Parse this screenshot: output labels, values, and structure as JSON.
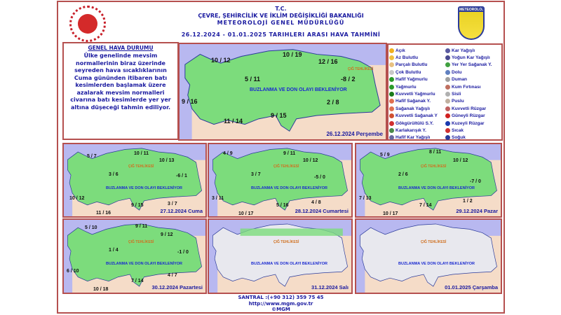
{
  "header": {
    "line1": "T.C.",
    "line2": "ÇEVRE, ŞEHİRCİLİK VE İKLİM DEĞİŞİKLİĞİ BAKANLIĞI",
    "line3": "METEOROLOJİ GENEL MÜDÜRLÜĞÜ",
    "subtitle": "26.12.2024 - 01.01.2025 TARIHLERI ARASI HAVA TAHMİNİ",
    "logo_right_text": "METEOROLOJİ"
  },
  "general": {
    "title": "GENEL HAVA DURUMU",
    "text": "Ülke genelinde mevsim normallerinin biraz üzerinde seyreden hava sıcaklıklarının Cuma gününden itibaren batı kesimlerden başlamak üzere azalarak mevsim normalleri civarına batı kesimlerde yer yer altına düşeceği tahmin ediliyor."
  },
  "legend": [
    {
      "label": "Açık",
      "icon": "sun",
      "color": "#f0b020"
    },
    {
      "label": "Az Bulutlu",
      "icon": "sun-cloud",
      "color": "#f0c040"
    },
    {
      "label": "Parçalı Bulutlu",
      "icon": "partly-cloudy",
      "color": "#e8c080"
    },
    {
      "label": "Çok Bulutlu",
      "icon": "cloudy",
      "color": "#c8c8c8"
    },
    {
      "label": "Hafif Yağmurlu",
      "icon": "light-rain",
      "color": "#2a9a2a"
    },
    {
      "label": "Yağmurlu",
      "icon": "rain",
      "color": "#2a9a2a"
    },
    {
      "label": "Kuvvetli Yağmurlu",
      "icon": "heavy-rain",
      "color": "#1a7a1a"
    },
    {
      "label": "Hafif Sağanak Y.",
      "icon": "light-shower",
      "color": "#e07050"
    },
    {
      "label": "Sağanak Yağışlı",
      "icon": "shower",
      "color": "#e07050"
    },
    {
      "label": "Kuvvetli Sağanak Y",
      "icon": "heavy-shower",
      "color": "#d05030"
    },
    {
      "label": "Gökgürültülü S.Y.",
      "icon": "thunderstorm",
      "color": "#d03030"
    },
    {
      "label": "Karlakarışık Y.",
      "icon": "sleet",
      "color": "#4a8a4a"
    },
    {
      "label": "Hafif Kar Yağışlı",
      "icon": "light-snow",
      "color": "#6a6aa0"
    },
    {
      "label": "Kar Yağışlı",
      "icon": "snow",
      "color": "#5a5aa0"
    },
    {
      "label": "Yoğun Kar Yağışlı",
      "icon": "heavy-snow",
      "color": "#4a4a90"
    },
    {
      "label": "Yer Yer Sağanak Y.",
      "icon": "scattered-shower",
      "color": "#40a040"
    },
    {
      "label": "Dolu",
      "icon": "hail",
      "color": "#6080c0"
    },
    {
      "label": "Duman",
      "icon": "smoke",
      "color": "#a0a0a0"
    },
    {
      "label": "Kum Fırtınası",
      "icon": "sandstorm",
      "color": "#c07060"
    },
    {
      "label": "Sisli",
      "icon": "fog",
      "color": "#b0b0b0"
    },
    {
      "label": "Puslu",
      "icon": "haze",
      "color": "#c0b0a0"
    },
    {
      "label": "Kuvvetli Rüzgar",
      "icon": "strong-wind",
      "color": "#c06060"
    },
    {
      "label": "Güneyli Rüzgar",
      "icon": "south-wind",
      "color": "#d02020"
    },
    {
      "label": "Kuzeyli Rüzgar",
      "icon": "north-wind",
      "color": "#1a3ab0"
    },
    {
      "label": "Sıcak",
      "icon": "hot",
      "color": "#d03030"
    },
    {
      "label": "Soğuk",
      "icon": "cold",
      "color": "#2a3a9a"
    }
  ],
  "warnings": {
    "ice": "BUZLANMA VE DON OLAYI BEKLENİYOR",
    "avalanche": "ÇIĞ TEHLİKESİ"
  },
  "maps": [
    {
      "date": "26.12.2024 Perşembe",
      "temps": [
        "10 / 12",
        "10 / 19",
        "12 / 16",
        "5 / 11",
        "-8 / 2",
        "9 / 16",
        "2 / 8",
        "9 / 15",
        "11 / 14"
      ]
    },
    {
      "date": "27.12.2024 Cuma",
      "temps": [
        "5 / 7",
        "10 / 11",
        "10 / 13",
        "3 / 6",
        "-6 / 1",
        "10 / 12",
        "3 / 7",
        "11 / 16",
        "9 / 15"
      ]
    },
    {
      "date": "28.12.2024 Cumartesi",
      "temps": [
        "4 / 9",
        "9 / 11",
        "10 / 12",
        "3 / 7",
        "-5 / 0",
        "3 / 11",
        "4 / 8",
        "10 / 17",
        "5 / 16"
      ]
    },
    {
      "date": "29.12.2024 Pazar",
      "temps": [
        "5 / 9",
        "8 / 11",
        "10 / 12",
        "2 / 6",
        "-7 / 0",
        "7 / 13",
        "1 / 2",
        "10 / 17",
        "7 / 14"
      ]
    },
    {
      "date": "30.12.2024 Pazartesi",
      "temps": [
        "5 / 10",
        "9 / 11",
        "9 / 12",
        "1 / 4",
        "-1 / 0",
        "6 / 10",
        "4 / 7",
        "7 / 14",
        "10 / 18"
      ]
    },
    {
      "date": "31.12.2024 Salı"
    },
    {
      "date": "01.01.2025 Çarşamba"
    }
  ],
  "footer": {
    "phone": "SANTRAL :(+90 312) 359 75 45",
    "url": "http://www.mgm.gov.tr",
    "copyright": "©MGM"
  }
}
